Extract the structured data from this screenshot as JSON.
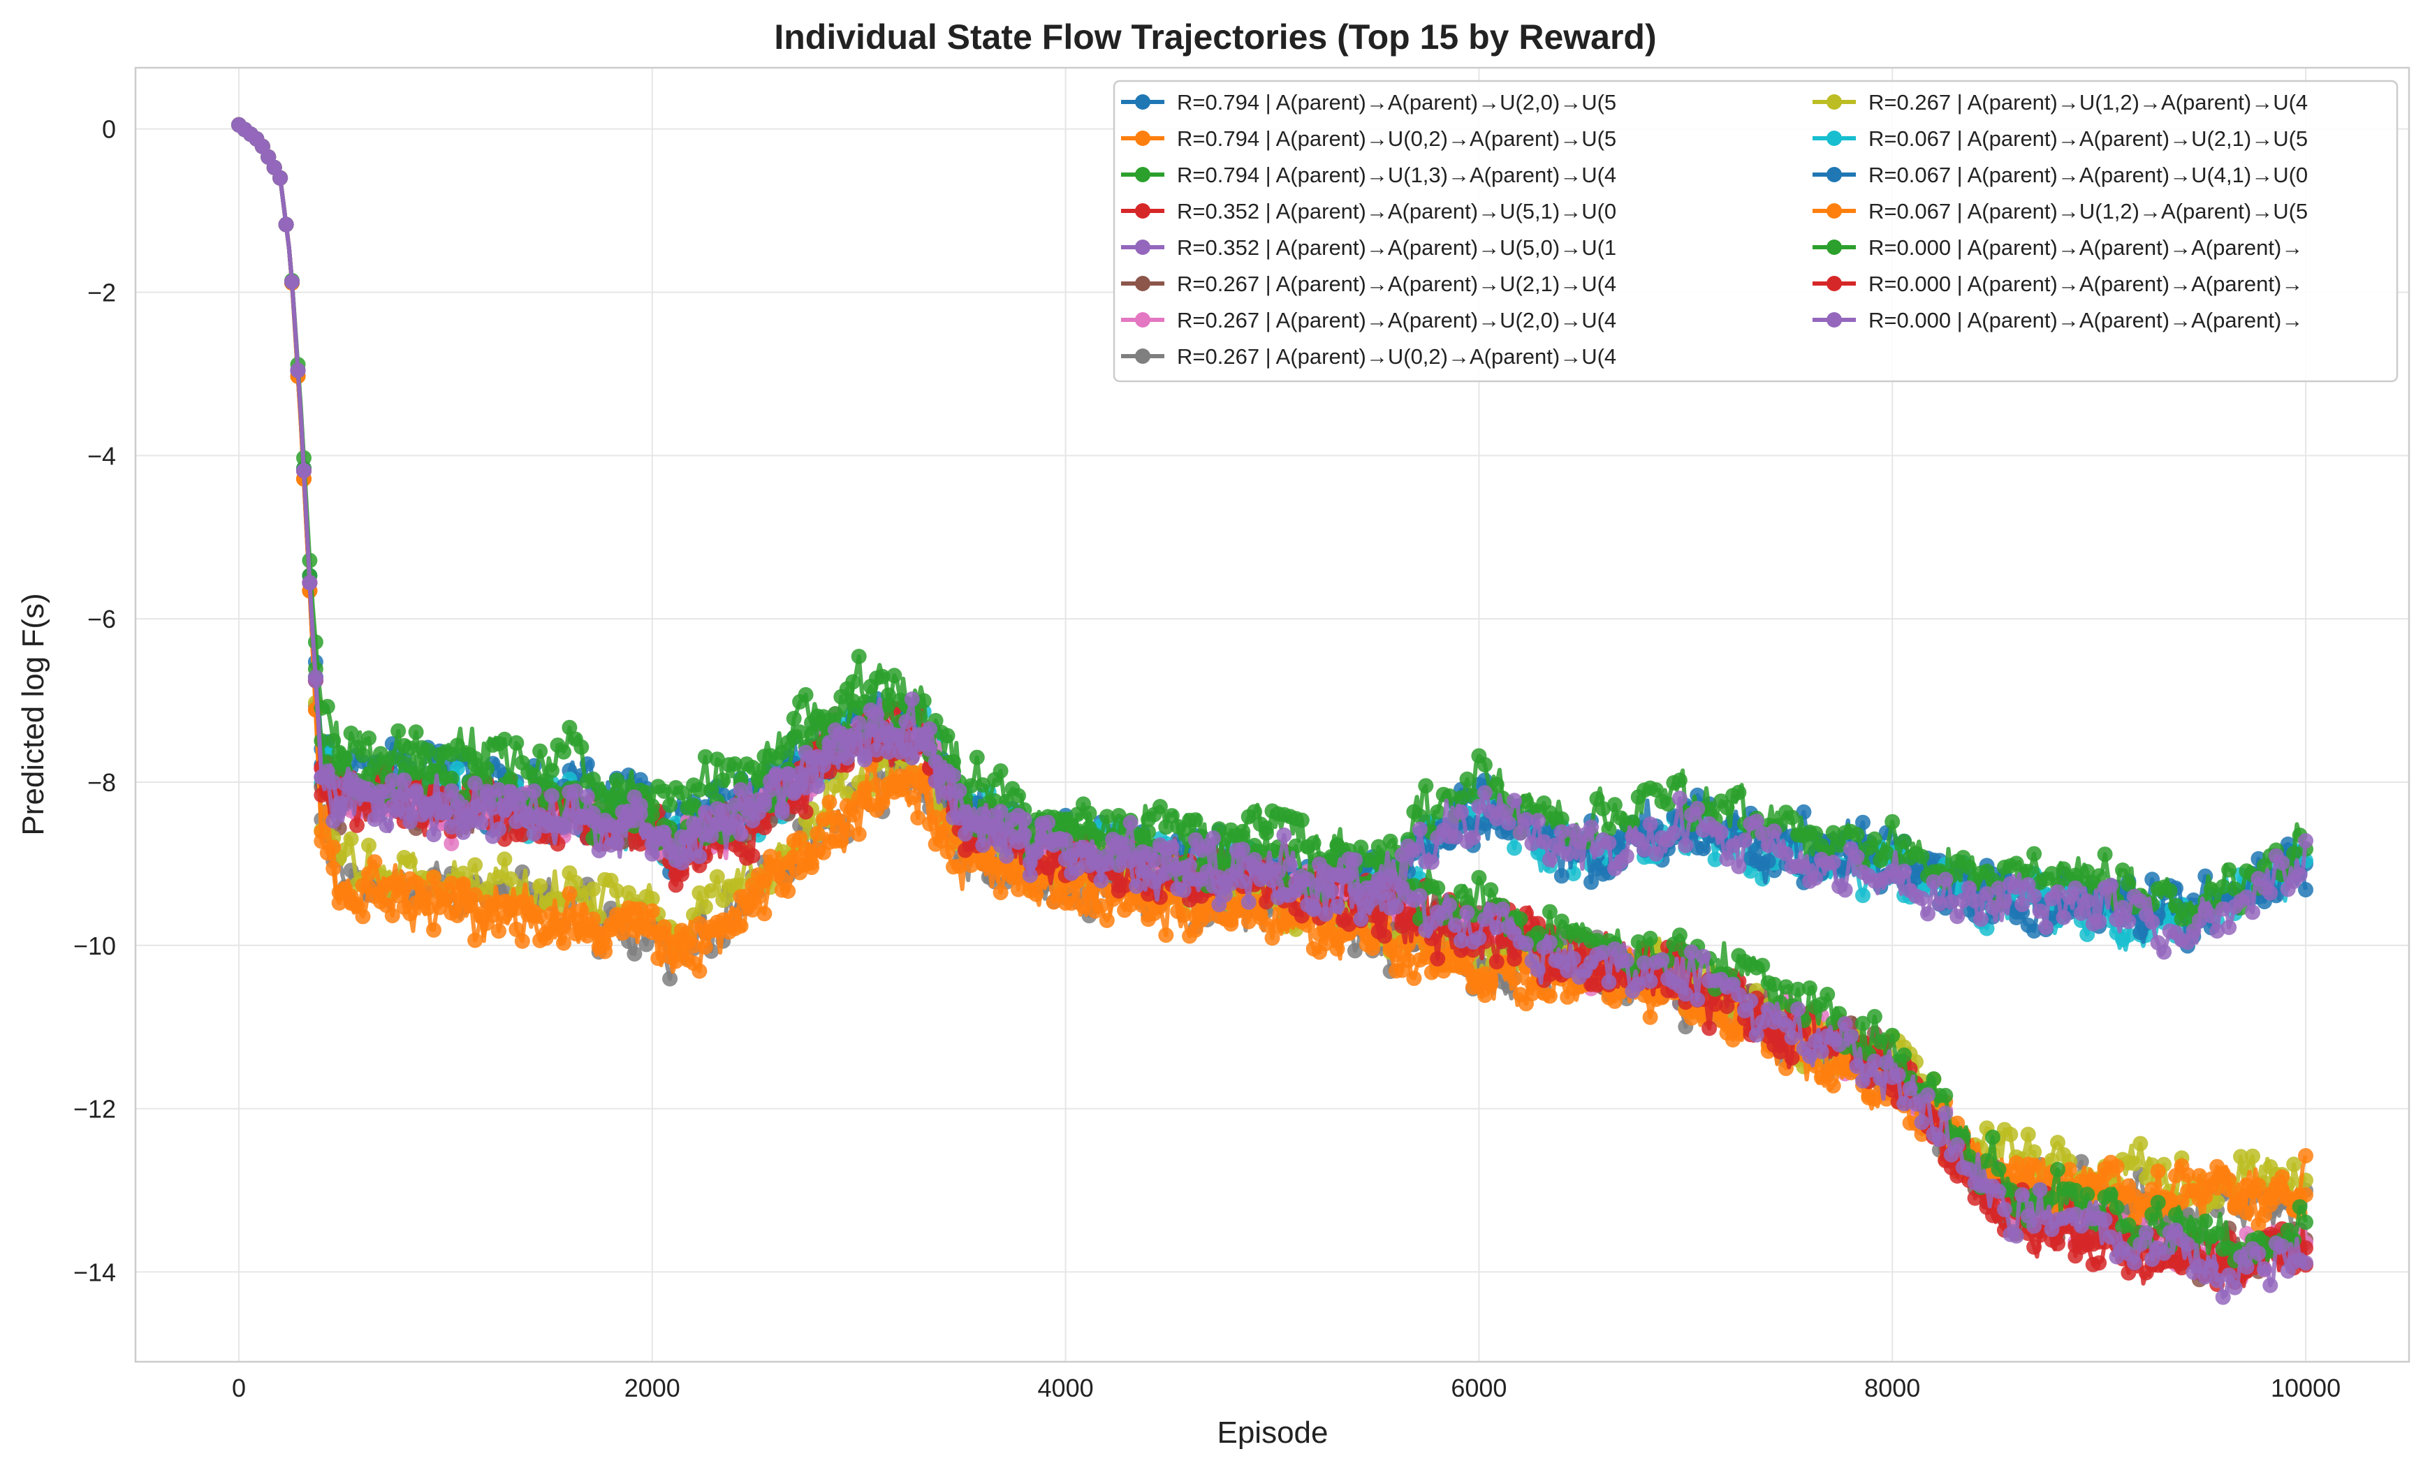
{
  "chart_data": {
    "type": "line",
    "title": "Individual State Flow Trajectories (Top 15 by Reward)",
    "xlabel": "Episode",
    "ylabel": "Predicted log F(s)",
    "xlim": [
      -500,
      10500
    ],
    "ylim": [
      -15.1,
      0.75
    ],
    "xticks": [
      0,
      2000,
      4000,
      6000,
      8000,
      10000
    ],
    "xtick_labels": [
      "0",
      "2000",
      "4000",
      "6000",
      "8000",
      "10000"
    ],
    "yticks": [
      0,
      -2,
      -4,
      -6,
      -8,
      -10,
      -12,
      -14
    ],
    "ytick_labels": [
      "0",
      "−2",
      "−4",
      "−6",
      "−8",
      "−10",
      "−12",
      "−14"
    ],
    "grid": true,
    "legend_position": "top-right",
    "legend_columns": 2,
    "x": [
      0,
      100,
      200,
      250,
      300,
      350,
      400,
      500,
      1000,
      1500,
      2000,
      2100,
      2500,
      3000,
      3300,
      3500,
      4000,
      4500,
      5000,
      5500,
      6000,
      6500,
      7000,
      7500,
      8000,
      8500,
      9000,
      9500,
      10000
    ],
    "series": [
      {
        "name": "R=0.794 | A(parent)→A(parent)→U(2,0)→U(5",
        "color": "#1f77b4",
        "values": [
          0.05,
          -0.15,
          -0.6,
          -1.6,
          -3.5,
          -5.8,
          -7.5,
          -7.8,
          -7.9,
          -8.1,
          -8.3,
          -8.6,
          -8.1,
          -7.2,
          -7.3,
          -8.4,
          -8.8,
          -8.9,
          -9.0,
          -9.2,
          -8.2,
          -8.8,
          -8.5,
          -8.7,
          -8.9,
          -9.3,
          -9.5,
          -9.6,
          -8.9
        ]
      },
      {
        "name": "R=0.794 | A(parent)→U(0,2)→A(parent)→U(5",
        "color": "#ff7f0e",
        "values": [
          0.05,
          -0.15,
          -0.6,
          -1.6,
          -3.6,
          -6.0,
          -8.6,
          -9.3,
          -9.5,
          -9.7,
          -9.8,
          -10.2,
          -9.4,
          -8.2,
          -8.0,
          -9.0,
          -9.3,
          -9.5,
          -9.6,
          -9.9,
          -10.3,
          -10.4,
          -10.6,
          -11.3,
          -11.7,
          -12.8,
          -13.0,
          -13.1,
          -12.9
        ]
      },
      {
        "name": "R=0.794 | A(parent)→U(1,3)→A(parent)→U(4",
        "color": "#2ca02c",
        "values": [
          0.05,
          -0.15,
          -0.6,
          -1.6,
          -3.4,
          -5.6,
          -7.2,
          -7.6,
          -7.6,
          -7.8,
          -8.0,
          -8.3,
          -7.8,
          -6.9,
          -7.0,
          -8.0,
          -8.5,
          -8.6,
          -8.7,
          -8.9,
          -7.9,
          -8.5,
          -8.2,
          -8.5,
          -8.8,
          -9.2,
          -9.3,
          -9.4,
          -8.8
        ]
      },
      {
        "name": "R=0.352 | A(parent)→A(parent)→U(5,1)→U(0",
        "color": "#d62728",
        "values": [
          0.05,
          -0.15,
          -0.6,
          -1.6,
          -3.5,
          -5.9,
          -7.9,
          -8.2,
          -8.3,
          -8.4,
          -8.6,
          -8.9,
          -8.4,
          -7.4,
          -7.4,
          -8.5,
          -8.9,
          -9.1,
          -9.2,
          -9.5,
          -9.8,
          -10.2,
          -10.4,
          -11.0,
          -11.5,
          -13.2,
          -13.6,
          -13.9,
          -13.8
        ]
      },
      {
        "name": "R=0.352 | A(parent)→A(parent)→U(5,0)→U(1",
        "color": "#9467bd",
        "values": [
          0.05,
          -0.15,
          -0.6,
          -1.6,
          -3.5,
          -5.9,
          -7.8,
          -8.1,
          -8.2,
          -8.3,
          -8.5,
          -8.8,
          -8.3,
          -7.3,
          -7.3,
          -8.4,
          -8.8,
          -9.0,
          -9.1,
          -9.3,
          -8.3,
          -8.9,
          -8.6,
          -8.9,
          -9.1,
          -9.5,
          -9.6,
          -9.7,
          -9.0
        ]
      },
      {
        "name": "R=0.267 | A(parent)→A(parent)→U(2,1)→U(4",
        "color": "#8c564b",
        "values": [
          0.05,
          -0.15,
          -0.6,
          -1.6,
          -3.5,
          -5.9,
          -7.9,
          -8.2,
          -8.3,
          -8.4,
          -8.6,
          -8.9,
          -8.4,
          -7.4,
          -7.4,
          -8.5,
          -8.9,
          -9.1,
          -9.2,
          -9.5,
          -9.8,
          -10.2,
          -10.4,
          -11.0,
          -11.5,
          -13.1,
          -13.5,
          -13.8,
          -13.7
        ]
      },
      {
        "name": "R=0.267 | A(parent)→A(parent)→U(2,0)→U(4",
        "color": "#e377c2",
        "values": [
          0.05,
          -0.15,
          -0.6,
          -1.6,
          -3.5,
          -5.9,
          -7.9,
          -8.2,
          -8.3,
          -8.4,
          -8.6,
          -8.9,
          -8.4,
          -7.4,
          -7.4,
          -8.5,
          -8.9,
          -9.1,
          -9.2,
          -9.5,
          -9.8,
          -10.2,
          -10.4,
          -11.0,
          -11.5,
          -13.1,
          -13.5,
          -13.8,
          -13.7
        ]
      },
      {
        "name": "R=0.267 | A(parent)→U(0,2)→A(parent)→U(4",
        "color": "#7f7f7f",
        "values": [
          0.05,
          -0.15,
          -0.6,
          -1.6,
          -3.6,
          -6.0,
          -8.5,
          -9.2,
          -9.4,
          -9.6,
          -9.7,
          -10.1,
          -9.3,
          -8.1,
          -7.9,
          -8.9,
          -9.2,
          -9.4,
          -9.5,
          -9.8,
          -10.2,
          -10.3,
          -10.5,
          -11.2,
          -11.6,
          -12.9,
          -13.1,
          -13.3,
          -13.0
        ]
      },
      {
        "name": "R=0.267 | A(parent)→U(1,2)→A(parent)→U(4",
        "color": "#bcbd22",
        "values": [
          0.05,
          -0.15,
          -0.6,
          -1.6,
          -3.6,
          -6.0,
          -8.4,
          -9.0,
          -9.2,
          -9.3,
          -9.5,
          -9.9,
          -9.1,
          -8.0,
          -7.8,
          -8.8,
          -9.1,
          -9.3,
          -9.4,
          -9.7,
          -10.1,
          -10.2,
          -10.4,
          -11.1,
          -11.4,
          -12.6,
          -12.8,
          -13.0,
          -12.8
        ]
      },
      {
        "name": "R=0.067 | A(parent)→A(parent)→U(2,1)→U(5",
        "color": "#17becf",
        "values": [
          0.05,
          -0.15,
          -0.6,
          -1.6,
          -3.5,
          -5.9,
          -7.8,
          -8.1,
          -8.2,
          -8.3,
          -8.5,
          -8.8,
          -8.3,
          -7.3,
          -7.3,
          -8.4,
          -8.8,
          -9.0,
          -9.1,
          -9.3,
          -8.3,
          -8.9,
          -8.6,
          -8.9,
          -9.1,
          -9.5,
          -9.6,
          -9.7,
          -9.0
        ]
      },
      {
        "name": "R=0.067 | A(parent)→A(parent)→U(4,1)→U(0",
        "color": "#1f77b4",
        "values": [
          0.05,
          -0.15,
          -0.6,
          -1.6,
          -3.5,
          -5.9,
          -7.8,
          -8.1,
          -8.2,
          -8.3,
          -8.5,
          -8.8,
          -8.3,
          -7.3,
          -7.3,
          -8.4,
          -8.8,
          -9.0,
          -9.1,
          -9.3,
          -8.3,
          -8.9,
          -8.6,
          -8.9,
          -9.1,
          -9.5,
          -9.6,
          -9.7,
          -9.0
        ]
      },
      {
        "name": "R=0.067 | A(parent)→U(1,2)→A(parent)→U(5",
        "color": "#ff7f0e",
        "values": [
          0.05,
          -0.15,
          -0.6,
          -1.6,
          -3.6,
          -6.0,
          -8.6,
          -9.3,
          -9.5,
          -9.7,
          -9.8,
          -10.2,
          -9.4,
          -8.2,
          -8.0,
          -9.0,
          -9.3,
          -9.5,
          -9.6,
          -9.9,
          -10.3,
          -10.4,
          -10.6,
          -11.3,
          -11.7,
          -12.8,
          -13.0,
          -13.1,
          -12.9
        ]
      },
      {
        "name": "R=0.000 | A(parent)→A(parent)→A(parent)→",
        "color": "#2ca02c",
        "values": [
          0.05,
          -0.15,
          -0.6,
          -1.6,
          -3.5,
          -5.8,
          -7.7,
          -8.0,
          -8.0,
          -8.2,
          -8.4,
          -8.7,
          -8.2,
          -7.1,
          -7.2,
          -8.3,
          -8.7,
          -8.8,
          -8.9,
          -9.1,
          -9.5,
          -9.9,
          -10.0,
          -10.6,
          -11.2,
          -12.9,
          -13.3,
          -13.6,
          -13.6
        ]
      },
      {
        "name": "R=0.000 | A(parent)→A(parent)→A(parent)→",
        "color": "#d62728",
        "values": [
          0.05,
          -0.15,
          -0.6,
          -1.6,
          -3.5,
          -5.9,
          -7.9,
          -8.2,
          -8.3,
          -8.4,
          -8.6,
          -8.9,
          -8.4,
          -7.4,
          -7.4,
          -8.5,
          -8.9,
          -9.1,
          -9.2,
          -9.5,
          -9.8,
          -10.2,
          -10.4,
          -11.0,
          -11.5,
          -13.2,
          -13.6,
          -14.0,
          -13.8
        ]
      },
      {
        "name": "R=0.000 | A(parent)→A(parent)→A(parent)→",
        "color": "#9467bd",
        "values": [
          0.05,
          -0.15,
          -0.6,
          -1.6,
          -3.5,
          -5.9,
          -7.9,
          -8.2,
          -8.3,
          -8.4,
          -8.6,
          -8.9,
          -8.4,
          -7.4,
          -7.4,
          -8.5,
          -8.9,
          -9.1,
          -9.2,
          -9.5,
          -9.8,
          -10.2,
          -10.4,
          -11.0,
          -11.5,
          -13.1,
          -13.5,
          -13.9,
          -13.7
        ]
      }
    ]
  }
}
